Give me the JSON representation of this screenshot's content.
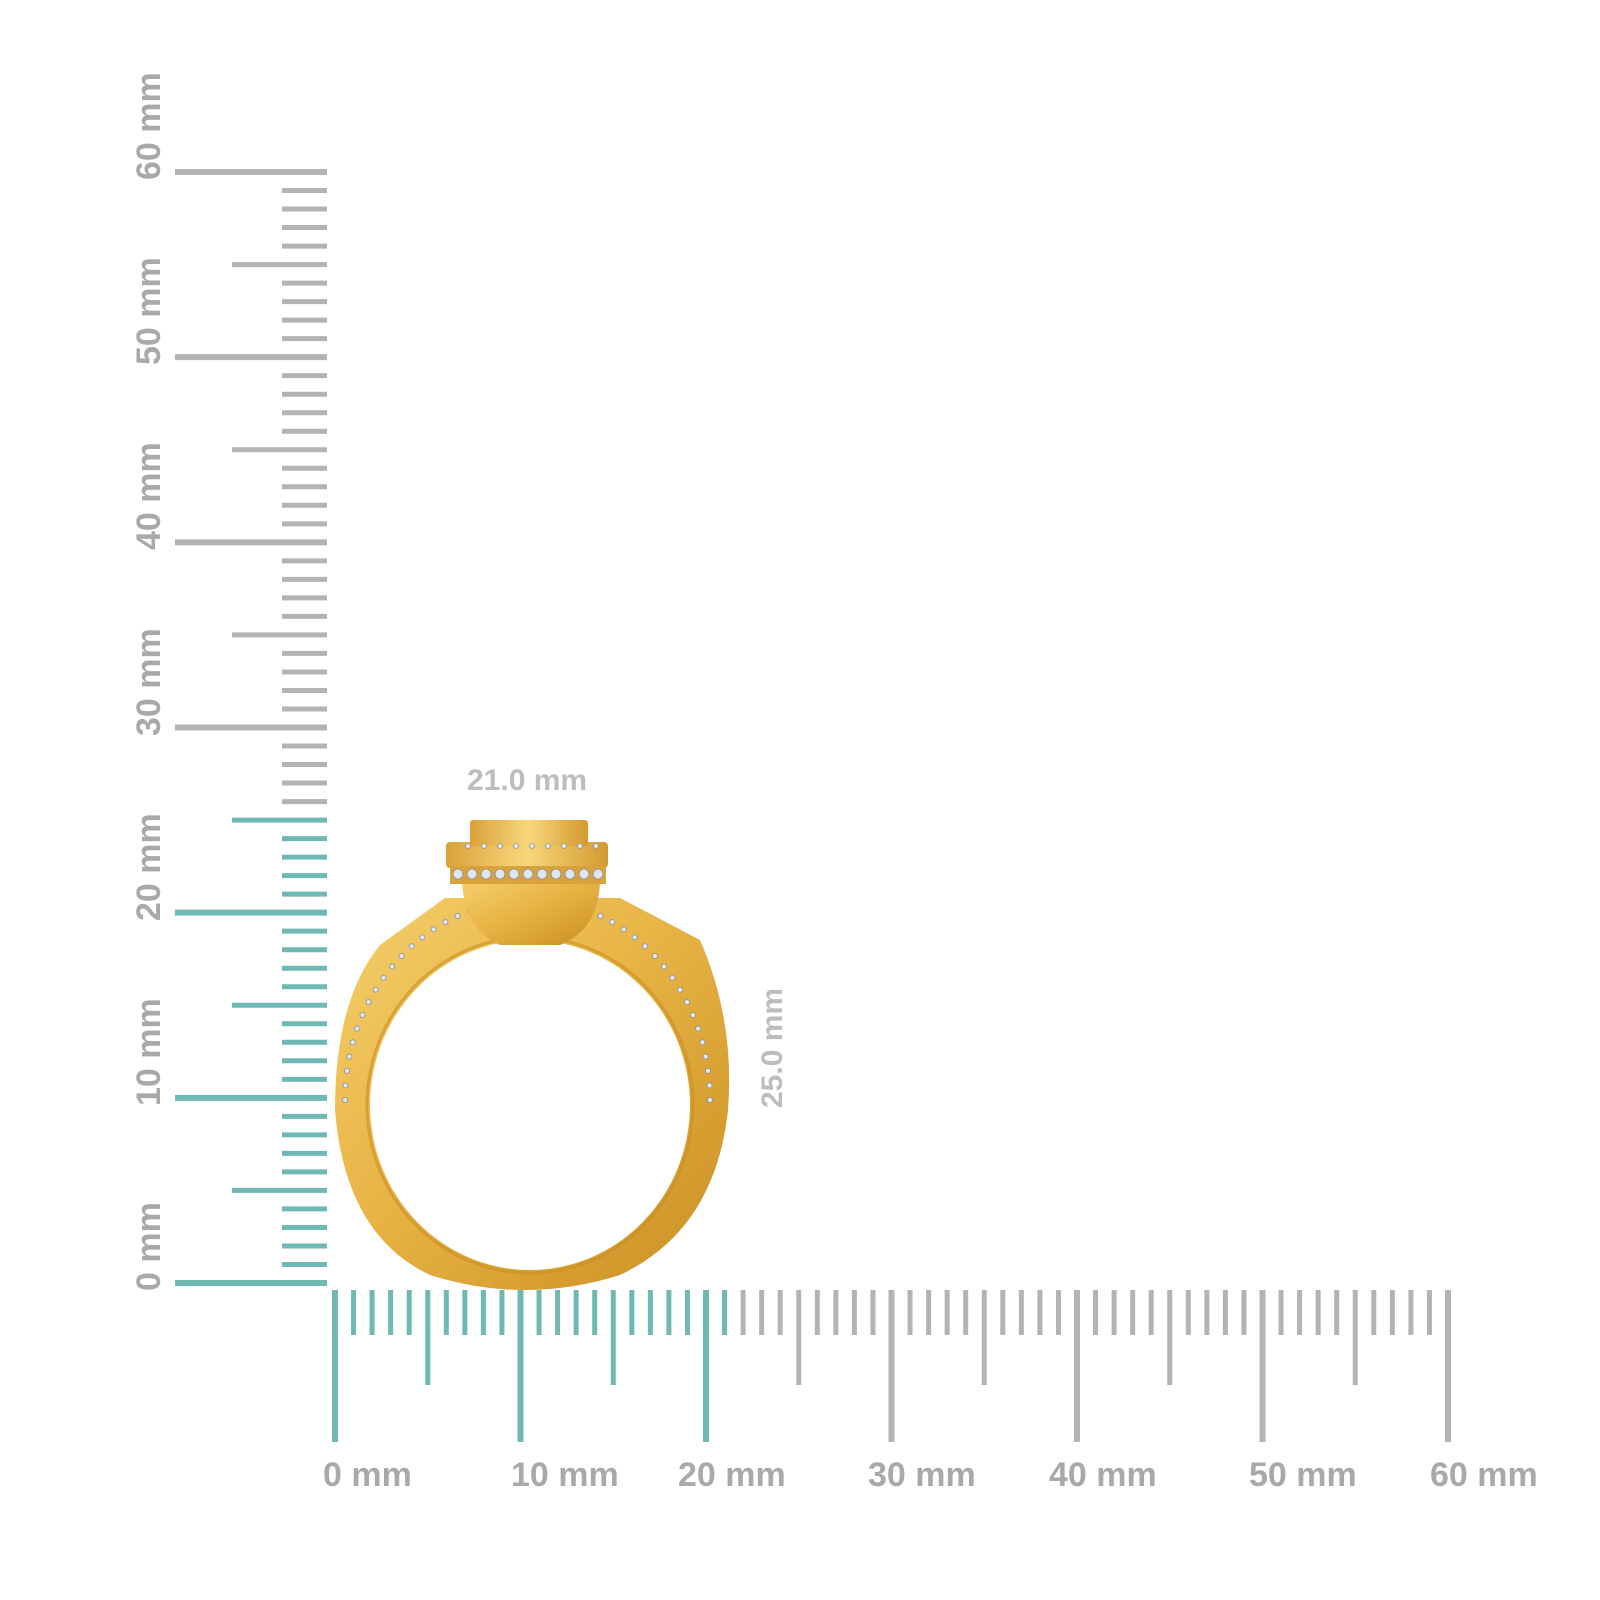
{
  "image": {
    "title": "Ring size reference with millimeter rulers",
    "background": "#ffffff"
  },
  "rulers": {
    "unit": "mm",
    "colors": {
      "highlight": "#6fb8b3",
      "neutral": "#b3b3b3",
      "label": "#a9a9a9"
    },
    "vertical": {
      "labels": [
        "0 mm",
        "10 mm",
        "20 mm",
        "30 mm",
        "40 mm",
        "50 mm",
        "60 mm"
      ],
      "range": [
        0,
        60
      ],
      "highlight_to": 25
    },
    "horizontal": {
      "labels": [
        "0 mm",
        "10 mm",
        "20 mm",
        "30 mm",
        "40 mm",
        "50 mm",
        "60 mm"
      ],
      "range": [
        0,
        60
      ],
      "highlight_to": 21
    }
  },
  "dimensions": {
    "width_label": "21.0 mm",
    "height_label": "25.0 mm"
  },
  "product": {
    "name": "yellow gold halo ring with pavé diamonds",
    "metal_color": "#e8b445",
    "metal_shadow": "#c98e22",
    "metal_highlight": "#f7d77a",
    "stone_color": "#dfe6ef"
  }
}
